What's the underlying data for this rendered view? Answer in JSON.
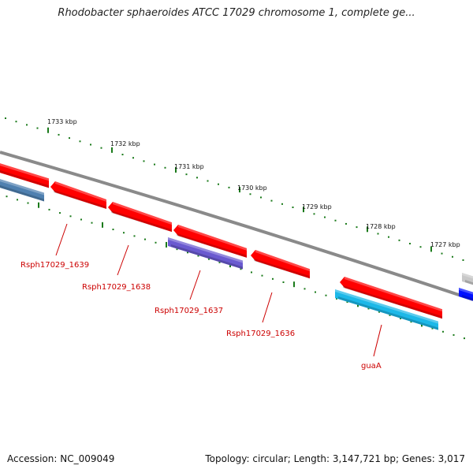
{
  "title": "Rhodobacter sphaeroides ATCC 17029 chromosome 1, complete ge...",
  "footer": {
    "accession": "Accession: NC_009049",
    "topology": "Topology: circular; Length: 3,147,721 bp; Genes: 3,017"
  },
  "map": {
    "backbone_color": "#8a8a8a",
    "tick_color": "#1a7a1a",
    "label_color": "#cc0000",
    "ticks": [
      "1733 kbp",
      "1732 kbp",
      "1731 kbp",
      "1730 kbp",
      "1729 kbp",
      "1728 kbp",
      "1727 kbp"
    ],
    "features": [
      {
        "color": "#ff0000",
        "label": ""
      },
      {
        "color": "#ff0000",
        "label": "Rsph17029_1639"
      },
      {
        "color": "#ff0000",
        "label": "Rsph17029_1638"
      },
      {
        "color": "#ff0000",
        "label": "Rsph17029_1637"
      },
      {
        "color": "#ff0000",
        "label": "Rsph17029_1636"
      },
      {
        "color": "#ff0000",
        "label": "guaA"
      },
      {
        "color": "#4f80b0",
        "label": ""
      },
      {
        "color": "#6a5ad0",
        "label": ""
      },
      {
        "color": "#1cb8e8",
        "label": ""
      },
      {
        "color": "#c8c8c8",
        "label": ""
      },
      {
        "color": "#0010ff",
        "label": ""
      }
    ]
  }
}
